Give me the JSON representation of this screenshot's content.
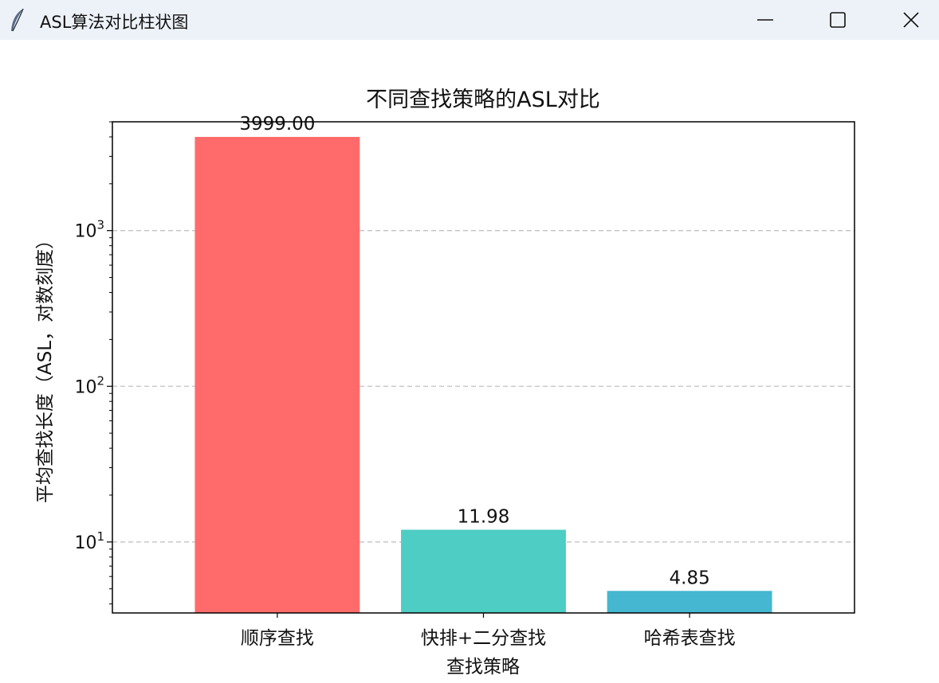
{
  "window": {
    "title": "ASL算法对比柱状图",
    "icons": {
      "app": "feather-icon",
      "minimize": "minimize-icon",
      "maximize": "maximize-icon",
      "close": "close-icon"
    }
  },
  "chart_data": {
    "type": "bar",
    "title": "不同查找策略的ASL对比",
    "xlabel": "查找策略",
    "ylabel": "平均查找长度（ASL，对数刻度）",
    "categories": [
      "顺序查找",
      "快排+二分查找",
      "哈希表查找"
    ],
    "values": [
      3999.0,
      11.98,
      4.85
    ],
    "value_labels": [
      "3999.00",
      "11.98",
      "4.85"
    ],
    "colors": [
      "#ff6b6b",
      "#4ecdc4",
      "#45b7d1"
    ],
    "yscale": "log",
    "ylim": [
      3.5,
      5000
    ],
    "yticks": [
      10,
      100,
      1000
    ],
    "ytick_labels": [
      {
        "base": "10",
        "exp": "1"
      },
      {
        "base": "10",
        "exp": "2"
      },
      {
        "base": "10",
        "exp": "3"
      }
    ],
    "grid": "y-dashed"
  }
}
